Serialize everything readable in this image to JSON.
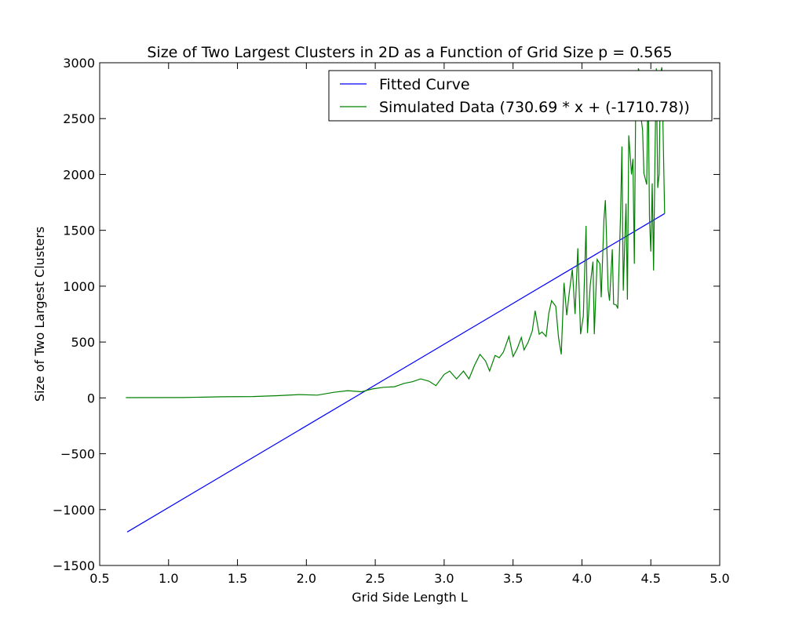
{
  "chart_data": {
    "type": "line",
    "title": "Size of Two Largest Clusters in 2D as a Function of Grid Size p = 0.565",
    "xlabel": "Grid Side Length L",
    "ylabel": "Size of Two Largest Clusters",
    "xlim": [
      0.5,
      5.0
    ],
    "ylim": [
      -1500,
      3000
    ],
    "xticks": [
      "0.5",
      "1.0",
      "1.5",
      "2.0",
      "2.5",
      "3.0",
      "3.5",
      "4.0",
      "4.5",
      "5.0"
    ],
    "yticks": [
      "−1500",
      "−1000",
      "−500",
      "0",
      "500",
      "1000",
      "1500",
      "2000",
      "2500",
      "3000"
    ],
    "xtick_values": [
      0.5,
      1.0,
      1.5,
      2.0,
      2.5,
      3.0,
      3.5,
      4.0,
      4.5,
      5.0
    ],
    "ytick_values": [
      -1500,
      -1000,
      -500,
      0,
      500,
      1000,
      1500,
      2000,
      2500,
      3000
    ],
    "grid": false,
    "legend_position": "top-right",
    "series": [
      {
        "name": "Fitted Curve",
        "color": "#0000ff",
        "x": [
          0.7,
          4.6
        ],
        "y": [
          -1200,
          1650
        ]
      },
      {
        "name": "Simulated Data (730.69 * x + (-1710.78))",
        "color": "#008000",
        "x": [
          0.69,
          1.1,
          1.39,
          1.61,
          1.79,
          1.95,
          2.08,
          2.2,
          2.3,
          2.4,
          2.48,
          2.56,
          2.64,
          2.71,
          2.77,
          2.83,
          2.89,
          2.94,
          3.0,
          3.04,
          3.09,
          3.14,
          3.18,
          3.22,
          3.26,
          3.3,
          3.33,
          3.37,
          3.4,
          3.43,
          3.47,
          3.5,
          3.53,
          3.56,
          3.58,
          3.61,
          3.64,
          3.66,
          3.69,
          3.71,
          3.74,
          3.76,
          3.78,
          3.81,
          3.83,
          3.85,
          3.87,
          3.89,
          3.91,
          3.93,
          3.95,
          3.97,
          3.99,
          4.01,
          4.03,
          4.04,
          4.06,
          4.08,
          4.09,
          4.11,
          4.13,
          4.14,
          4.16,
          4.17,
          4.19,
          4.2,
          4.22,
          4.23,
          4.25,
          4.26,
          4.28,
          4.29,
          4.3,
          4.32,
          4.33,
          4.34,
          4.36,
          4.37,
          4.38,
          4.39,
          4.41,
          4.42,
          4.43,
          4.44,
          4.45,
          4.47,
          4.48,
          4.49,
          4.5,
          4.51,
          4.52,
          4.53,
          4.54,
          4.55,
          4.56,
          4.57,
          4.58,
          4.6
        ],
        "y": [
          2,
          3,
          10,
          12,
          20,
          30,
          25,
          50,
          65,
          55,
          80,
          95,
          100,
          130,
          145,
          170,
          150,
          110,
          210,
          240,
          170,
          240,
          170,
          290,
          390,
          330,
          240,
          380,
          360,
          410,
          550,
          370,
          440,
          540,
          430,
          500,
          600,
          780,
          570,
          590,
          550,
          760,
          870,
          820,
          540,
          390,
          1030,
          740,
          960,
          1150,
          750,
          1340,
          570,
          730,
          1540,
          580,
          1010,
          1220,
          570,
          1240,
          1200,
          900,
          1600,
          1770,
          970,
          870,
          1330,
          840,
          830,
          800,
          1630,
          2250,
          960,
          1740,
          880,
          2350,
          2000,
          2140,
          1200,
          2600,
          2950,
          2900,
          2500,
          2400,
          2010,
          1910,
          2900,
          1610,
          1310,
          1920,
          1140,
          2160,
          2950,
          1880,
          2000,
          2900,
          2960,
          1650
        ]
      }
    ]
  }
}
